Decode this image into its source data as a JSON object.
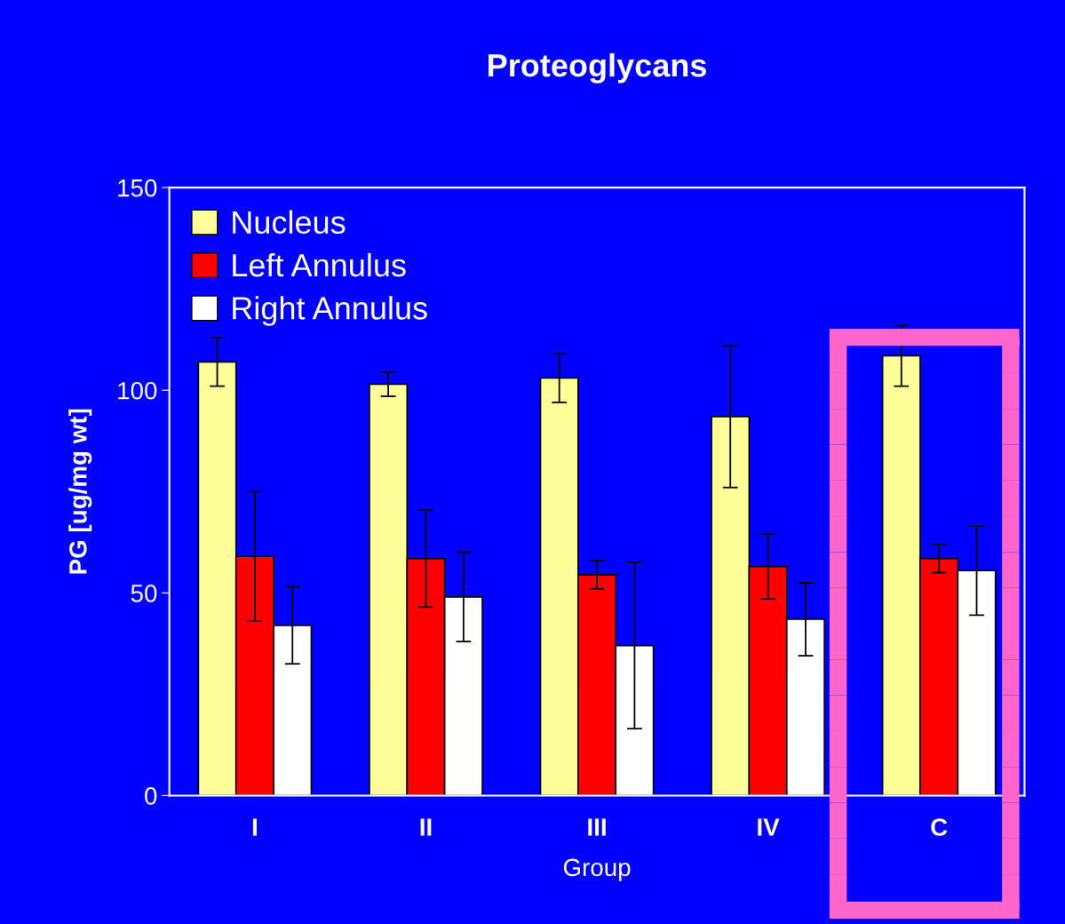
{
  "chart_data": {
    "type": "bar",
    "title": "Proteoglycans",
    "xlabel": "Group",
    "ylabel": "PG [ug/mg wt]",
    "categories": [
      "I",
      "II",
      "III",
      "IV",
      "C"
    ],
    "series": [
      {
        "name": "Nucleus",
        "color": "#ffff99",
        "values": [
          107,
          101.5,
          103,
          93.5,
          108.5
        ],
        "errors": [
          6,
          3,
          6,
          17.5,
          7.5
        ]
      },
      {
        "name": "Left Annulus",
        "color": "#ff0000",
        "values": [
          59,
          58.5,
          54.5,
          56.5,
          58.5
        ],
        "errors": [
          16,
          12,
          3.5,
          8,
          3.5
        ]
      },
      {
        "name": "Right Annulus",
        "color": "#ffffff",
        "values": [
          42,
          49,
          37,
          43.5,
          55.5
        ],
        "errors": [
          9.5,
          11,
          20.5,
          9,
          11
        ]
      }
    ],
    "ylim": [
      0,
      150
    ],
    "yticks": [
      0,
      50,
      100,
      150
    ],
    "grid": false,
    "legend": "top left"
  }
}
